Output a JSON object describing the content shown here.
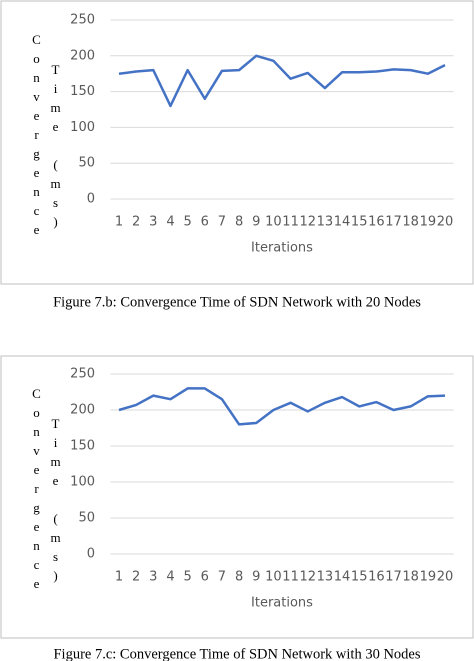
{
  "chart_data": [
    {
      "type": "line",
      "x_label": "Iterations",
      "y_label": "Convergence",
      "y_label2": "Time (ms)",
      "categories": [
        "1",
        "2",
        "3",
        "4",
        "5",
        "6",
        "7",
        "8",
        "9",
        "10",
        "11",
        "12",
        "13",
        "14",
        "15",
        "16",
        "17",
        "18",
        "19",
        "20"
      ],
      "values": [
        175,
        178,
        180,
        130,
        180,
        140,
        179,
        180,
        200,
        193,
        168,
        176,
        155,
        177,
        177,
        178,
        181,
        180,
        175,
        187
      ],
      "color": "#4472c4",
      "ylim": [
        0,
        250
      ],
      "yticks": [
        0,
        50,
        100,
        150,
        200,
        250
      ],
      "grid": true,
      "caption": "Figure 7.b: Convergence Time of SDN Network with 20 Nodes"
    },
    {
      "type": "line",
      "x_label": "Iterations",
      "y_label": "Convergence",
      "y_label2": "Time (ms)",
      "categories": [
        "1",
        "2",
        "3",
        "4",
        "5",
        "6",
        "7",
        "8",
        "9",
        "10",
        "11",
        "12",
        "13",
        "14",
        "15",
        "16",
        "17",
        "18",
        "19",
        "20"
      ],
      "values": [
        200,
        207,
        220,
        215,
        230,
        230,
        215,
        180,
        182,
        200,
        210,
        198,
        210,
        218,
        205,
        211,
        200,
        205,
        219,
        220
      ],
      "color": "#4472c4",
      "ylim": [
        0,
        250
      ],
      "yticks": [
        0,
        50,
        100,
        150,
        200,
        250
      ],
      "grid": true,
      "caption": "Figure 7.c: Convergence Time of SDN Network with 30 Nodes"
    }
  ]
}
